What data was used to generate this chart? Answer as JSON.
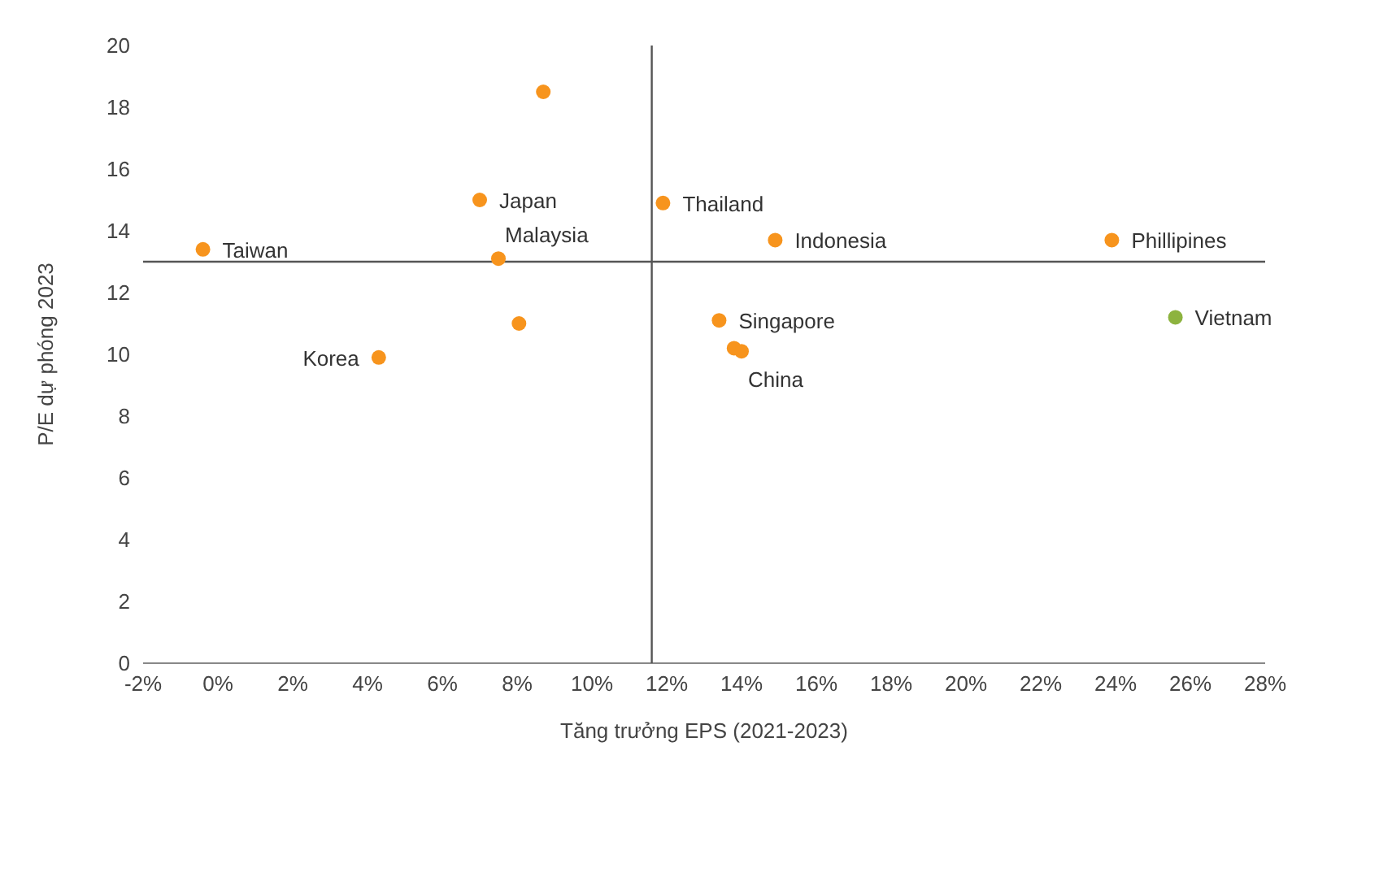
{
  "chart_data": {
    "type": "scatter",
    "xlabel": "Tăng trưởng EPS (2021-2023)",
    "ylabel": "P/E dự phóng 2023",
    "x": [
      8.7,
      7.0,
      11.9,
      14.9,
      23.9,
      -0.4,
      7.5,
      13.4,
      25.6,
      8.05,
      4.3,
      13.8,
      14.0
    ],
    "values": [
      18.5,
      15.0,
      14.9,
      13.7,
      13.7,
      13.4,
      13.1,
      11.1,
      11.2,
      11.0,
      9.9,
      10.2,
      10.1
    ],
    "colors": [
      "#f7941d",
      "#f7941d",
      "#f7941d",
      "#f7941d",
      "#f7941d",
      "#f7941d",
      "#f7941d",
      "#f7941d",
      "#8db33f",
      "#f7941d",
      "#f7941d",
      "#f7941d",
      "#f7941d"
    ],
    "marker": "circle",
    "grid": false,
    "xlim": [
      -2,
      28
    ],
    "xticks": [
      {
        "value": -2,
        "label": "-2%"
      },
      {
        "value": 0,
        "label": "0%"
      },
      {
        "value": 2,
        "label": "2%"
      },
      {
        "value": 4,
        "label": "4%"
      },
      {
        "value": 6,
        "label": "6%"
      },
      {
        "value": 8,
        "label": "8%"
      },
      {
        "value": 10,
        "label": "10%"
      },
      {
        "value": 12,
        "label": "12%"
      },
      {
        "value": 14,
        "label": "14%"
      },
      {
        "value": 16,
        "label": "16%"
      },
      {
        "value": 18,
        "label": "18%"
      },
      {
        "value": 20,
        "label": "20%"
      },
      {
        "value": 22,
        "label": "22%"
      },
      {
        "value": 24,
        "label": "24%"
      },
      {
        "value": 26,
        "label": "26%"
      },
      {
        "value": 28,
        "label": "28%"
      }
    ],
    "ylim": [
      0,
      20
    ],
    "yticks": [
      0,
      2,
      4,
      6,
      8,
      10,
      12,
      14,
      16,
      18,
      20
    ],
    "ref_lines": [
      {
        "axis": "x",
        "value": 11.6,
        "color": "#555555"
      },
      {
        "axis": "y",
        "value": 13.0,
        "color": "#555555"
      }
    ],
    "annotations": [
      {
        "text": "Taiwan",
        "x": -0.4,
        "y": 13.4
      },
      {
        "text": "Japan",
        "x": 7.0,
        "y": 15.0
      },
      {
        "text": "Malaysia",
        "x": 7.5,
        "y": 13.1
      },
      {
        "text": "Thailand",
        "x": 11.9,
        "y": 14.9
      },
      {
        "text": "Indonesia",
        "x": 14.9,
        "y": 13.7
      },
      {
        "text": "Phillipines",
        "x": 23.9,
        "y": 13.7
      },
      {
        "text": "Singapore",
        "x": 13.4,
        "y": 11.1
      },
      {
        "text": "Vietnam",
        "x": 25.6,
        "y": 11.2
      },
      {
        "text": "Korea",
        "x": 4.3,
        "y": 9.9
      },
      {
        "text": "China",
        "x": 14.0,
        "y": 10.1
      }
    ]
  }
}
